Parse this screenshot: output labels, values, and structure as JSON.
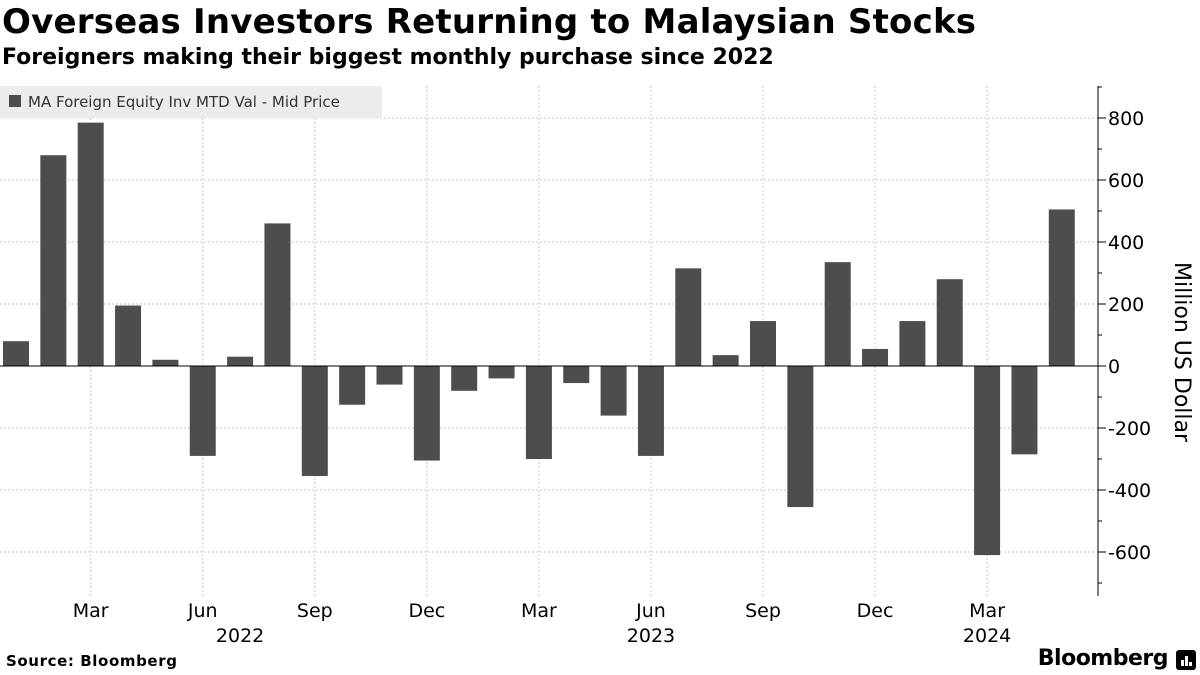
{
  "header": {
    "title": "Overseas Investors Returning to Malaysian Stocks",
    "subtitle": "Foreigners making their biggest monthly purchase since 2022"
  },
  "footer": {
    "source": "Source: Bloomberg",
    "brand": "Bloomberg"
  },
  "colors": {
    "bar": "#4d4d4d",
    "grid": "#c8c8c8",
    "legend_bg": "#ececec"
  },
  "chart_data": {
    "type": "bar",
    "title": "Overseas Investors Returning to Malaysian Stocks",
    "subtitle": "Foreigners making their biggest monthly purchase since 2022",
    "ylabel": "Million US Dollar",
    "xlabel": "",
    "ylim": [
      -730,
      920
    ],
    "yticks": [
      -600,
      -400,
      -200,
      0,
      200,
      400,
      600,
      800
    ],
    "legend": {
      "label": "MA Foreign Equity Inv MTD Val - Mid Price",
      "position": "top-left"
    },
    "grid": true,
    "categories": [
      "Jan 2022",
      "Feb 2022",
      "Mar 2022",
      "Apr 2022",
      "May 2022",
      "Jun 2022",
      "Jul 2022",
      "Aug 2022",
      "Sep 2022",
      "Oct 2022",
      "Nov 2022",
      "Dec 2022",
      "Jan 2023",
      "Feb 2023",
      "Mar 2023",
      "Apr 2023",
      "May 2023",
      "Jun 2023",
      "Jul 2023",
      "Aug 2023",
      "Sep 2023",
      "Oct 2023",
      "Nov 2023",
      "Dec 2023",
      "Jan 2024",
      "Feb 2024",
      "Mar 2024",
      "Apr 2024",
      "May 2024"
    ],
    "values": [
      80,
      680,
      785,
      195,
      20,
      -290,
      30,
      460,
      -355,
      -125,
      -60,
      -305,
      -80,
      -40,
      -300,
      -55,
      -160,
      -290,
      315,
      35,
      145,
      -455,
      335,
      55,
      145,
      280,
      -610,
      -285,
      505
    ],
    "x_tick_labels": [
      {
        "label": "Mar",
        "index": 2
      },
      {
        "label": "Jun",
        "index": 5
      },
      {
        "label": "Sep",
        "index": 8
      },
      {
        "label": "Dec",
        "index": 11
      },
      {
        "label": "Mar",
        "index": 14
      },
      {
        "label": "Jun",
        "index": 17
      },
      {
        "label": "Sep",
        "index": 20
      },
      {
        "label": "Dec",
        "index": 23
      },
      {
        "label": "Mar",
        "index": 26
      }
    ],
    "year_labels": [
      {
        "label": "2022",
        "index": 6
      },
      {
        "label": "2023",
        "index": 17
      },
      {
        "label": "2024",
        "index": 26
      }
    ]
  }
}
